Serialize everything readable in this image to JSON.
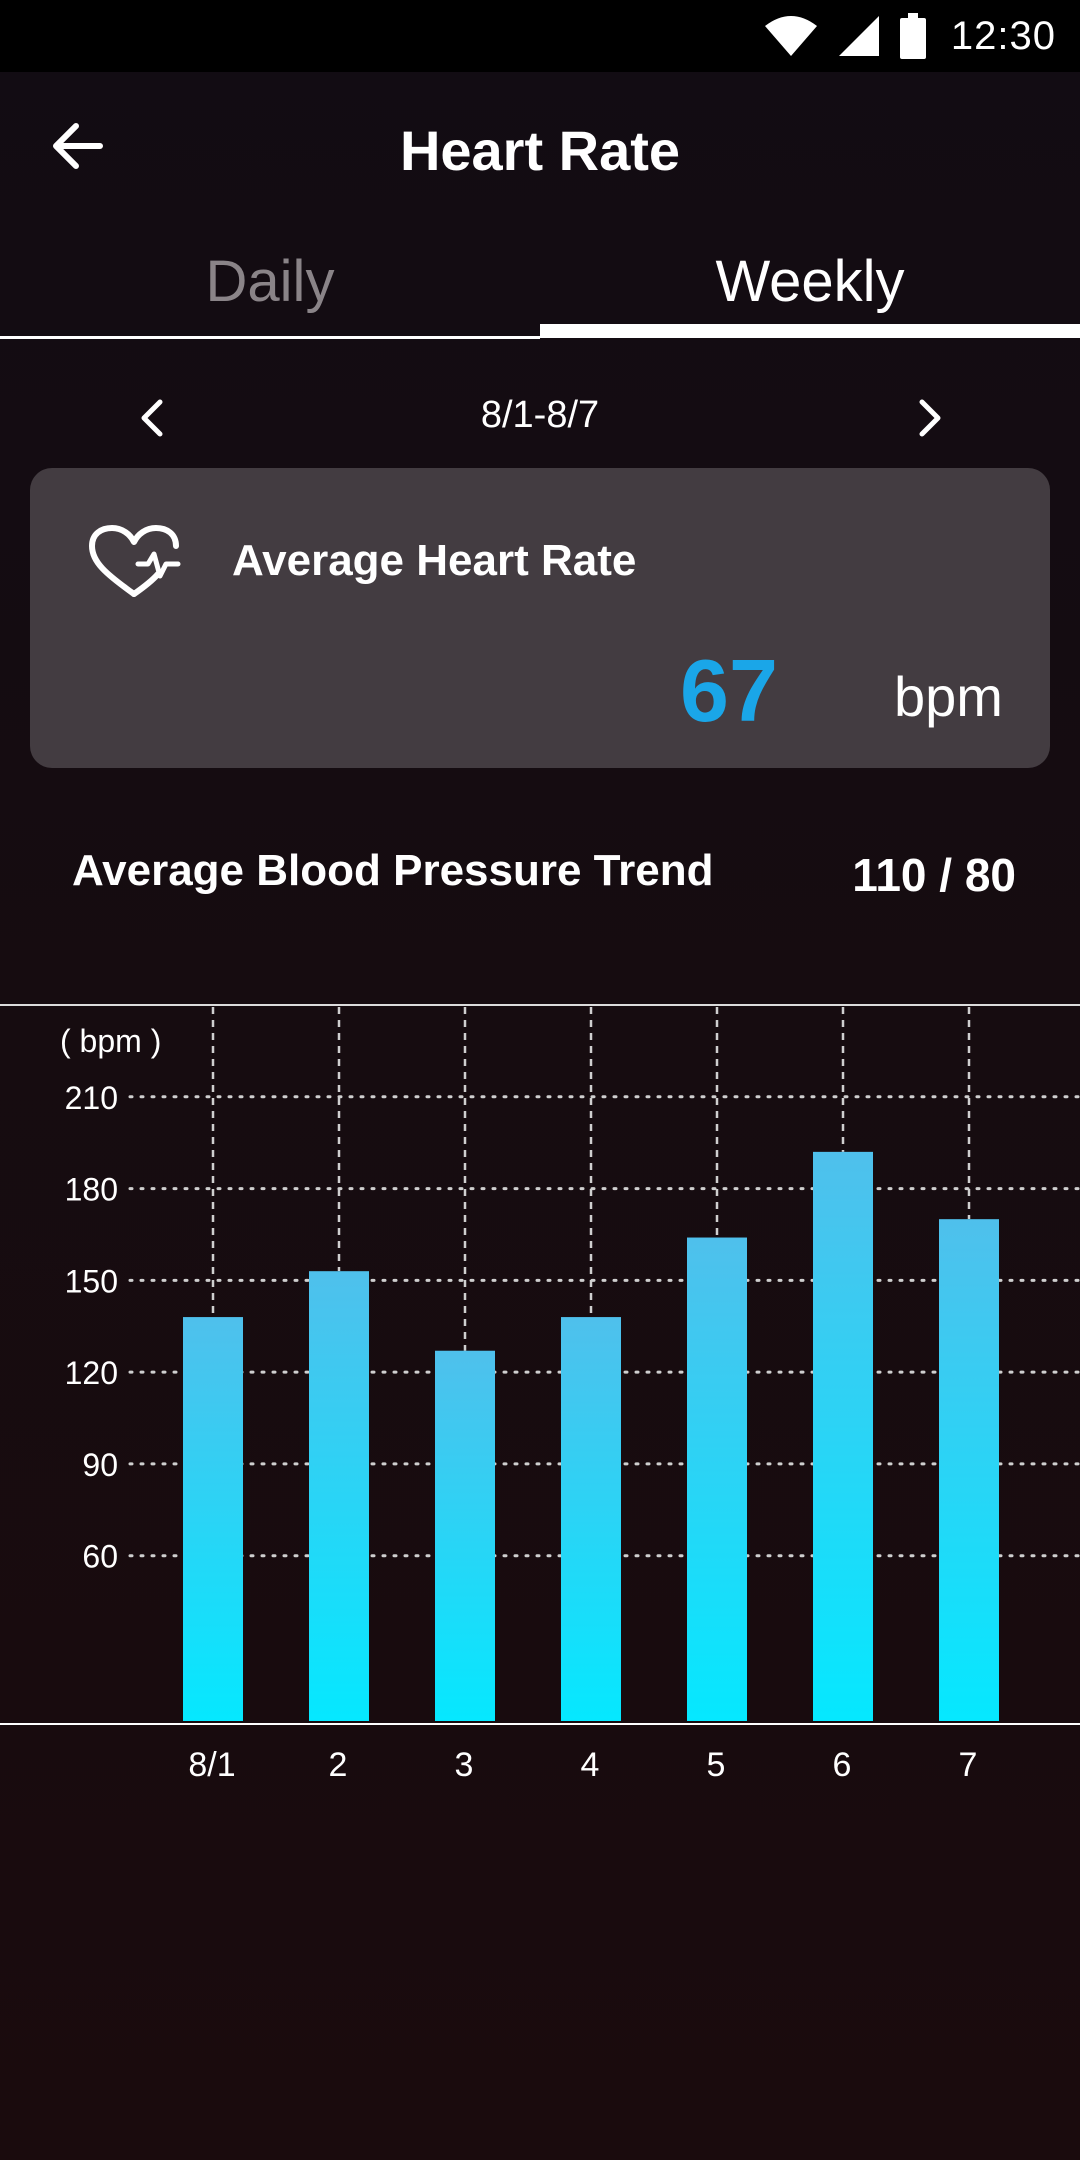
{
  "status_bar": {
    "time": "12:30",
    "icons": [
      "wifi-icon",
      "cellular-signal-icon",
      "battery-icon"
    ]
  },
  "header": {
    "title": "Heart Rate",
    "back_icon": "arrow-left-icon"
  },
  "tabs": [
    {
      "label": "Daily",
      "selected": false
    },
    {
      "label": "Weekly",
      "selected": true
    }
  ],
  "date_nav": {
    "range": "8/1-8/7",
    "prev_icon": "chevron-left-icon",
    "next_icon": "chevron-right-icon"
  },
  "summary_card": {
    "icon": "heart-pulse-icon",
    "title": "Average Heart Rate",
    "value": "67",
    "unit": "bpm",
    "value_color": "#1aa6e8"
  },
  "blood_pressure": {
    "label": "Average Blood Pressure Trend",
    "value": "110 / 80"
  },
  "chart_data": {
    "type": "bar",
    "title": "",
    "xlabel": "",
    "ylabel": "( bpm )",
    "categories": [
      "8/1",
      "2",
      "3",
      "4",
      "5",
      "6",
      "7"
    ],
    "values": [
      138,
      153,
      127,
      138,
      164,
      192,
      170
    ],
    "y_ticks": [
      60,
      90,
      120,
      150,
      180,
      210
    ],
    "ylim": [
      5,
      240
    ],
    "grid": true,
    "bar_gradient": [
      "#4fc0ec",
      "#05e8ff"
    ]
  }
}
